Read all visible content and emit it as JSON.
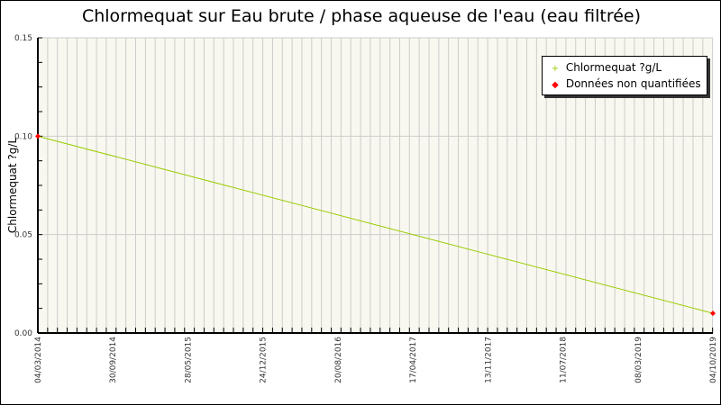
{
  "chart_data": {
    "type": "line",
    "title": "Chlormequat sur Eau brute / phase aqueuse de l'eau (eau filtrée)",
    "xlabel": "",
    "ylabel": "Chlormequat ?g/L",
    "ylim": [
      0,
      0.15
    ],
    "yticks": [
      "0.00",
      "0.05",
      "0.10",
      "0.15"
    ],
    "xlim": [
      "2014-03-04",
      "2019-10-04"
    ],
    "xticks": [
      "04/03/2014",
      "30/09/2014",
      "28/05/2015",
      "24/12/2015",
      "20/08/2016",
      "17/04/2017",
      "13/11/2017",
      "11/07/2018",
      "08/03/2019",
      "04/10/2019"
    ],
    "grid": true,
    "legend_position": "top-right",
    "series": [
      {
        "name": "Chlormequat ?g/L",
        "color": "#99cc00",
        "points": [
          {
            "x": "2014-03-04",
            "y": 0.1
          },
          {
            "x": "2019-10-04",
            "y": 0.01
          }
        ]
      },
      {
        "name": "Données non quantifiées",
        "color": "#ff0000",
        "points": [
          {
            "x": "2014-03-04",
            "y": 0.1
          },
          {
            "x": "2019-10-04",
            "y": 0.01
          }
        ]
      }
    ]
  }
}
